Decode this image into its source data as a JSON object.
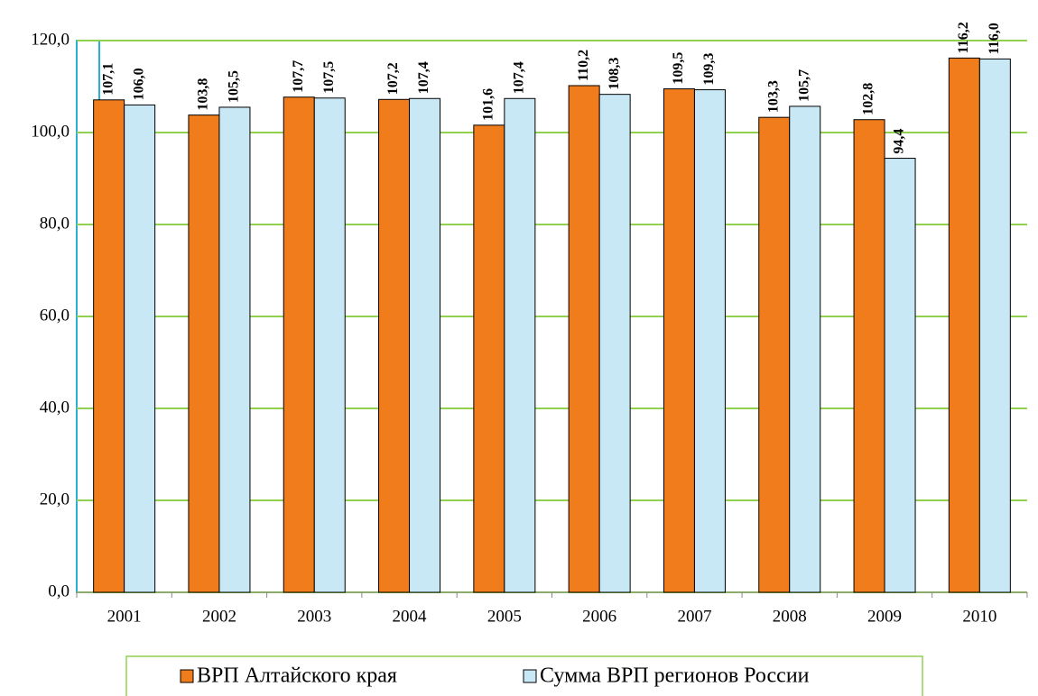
{
  "chart_data": {
    "type": "bar",
    "categories": [
      "2001",
      "2002",
      "2003",
      "2004",
      "2005",
      "2006",
      "2007",
      "2008",
      "2009",
      "2010"
    ],
    "series": [
      {
        "name": "ВРП Алтайского края",
        "color": "#f07c1c",
        "values": [
          107.1,
          103.8,
          107.7,
          107.2,
          101.6,
          110.2,
          109.5,
          103.3,
          102.8,
          116.2
        ],
        "value_labels": [
          "107,1",
          "103,8",
          "107,7",
          "107,2",
          "101,6",
          "110,2",
          "109,5",
          "103,3",
          "102,8",
          "116,2"
        ]
      },
      {
        "name": "Сумма ВРП регионов России",
        "color": "#c9e8f6",
        "values": [
          106.0,
          105.5,
          107.5,
          107.4,
          107.4,
          108.3,
          109.3,
          105.7,
          94.4,
          116.0
        ],
        "value_labels": [
          "106,0",
          "105,5",
          "107,5",
          "107,4",
          "107,4",
          "108,3",
          "109,3",
          "105,7",
          "94,4",
          "116,0"
        ]
      }
    ],
    "ylim": [
      0,
      120
    ],
    "yticks": [
      {
        "value": 0,
        "label": "0,0"
      },
      {
        "value": 20,
        "label": "20,0"
      },
      {
        "value": 40,
        "label": "40,0"
      },
      {
        "value": 60,
        "label": "60,0"
      },
      {
        "value": 80,
        "label": "80,0"
      },
      {
        "value": 100,
        "label": "100,0"
      },
      {
        "value": 120,
        "label": "120,0"
      }
    ],
    "grid": true,
    "grid_color": "#92d050",
    "legend": "bottom"
  }
}
